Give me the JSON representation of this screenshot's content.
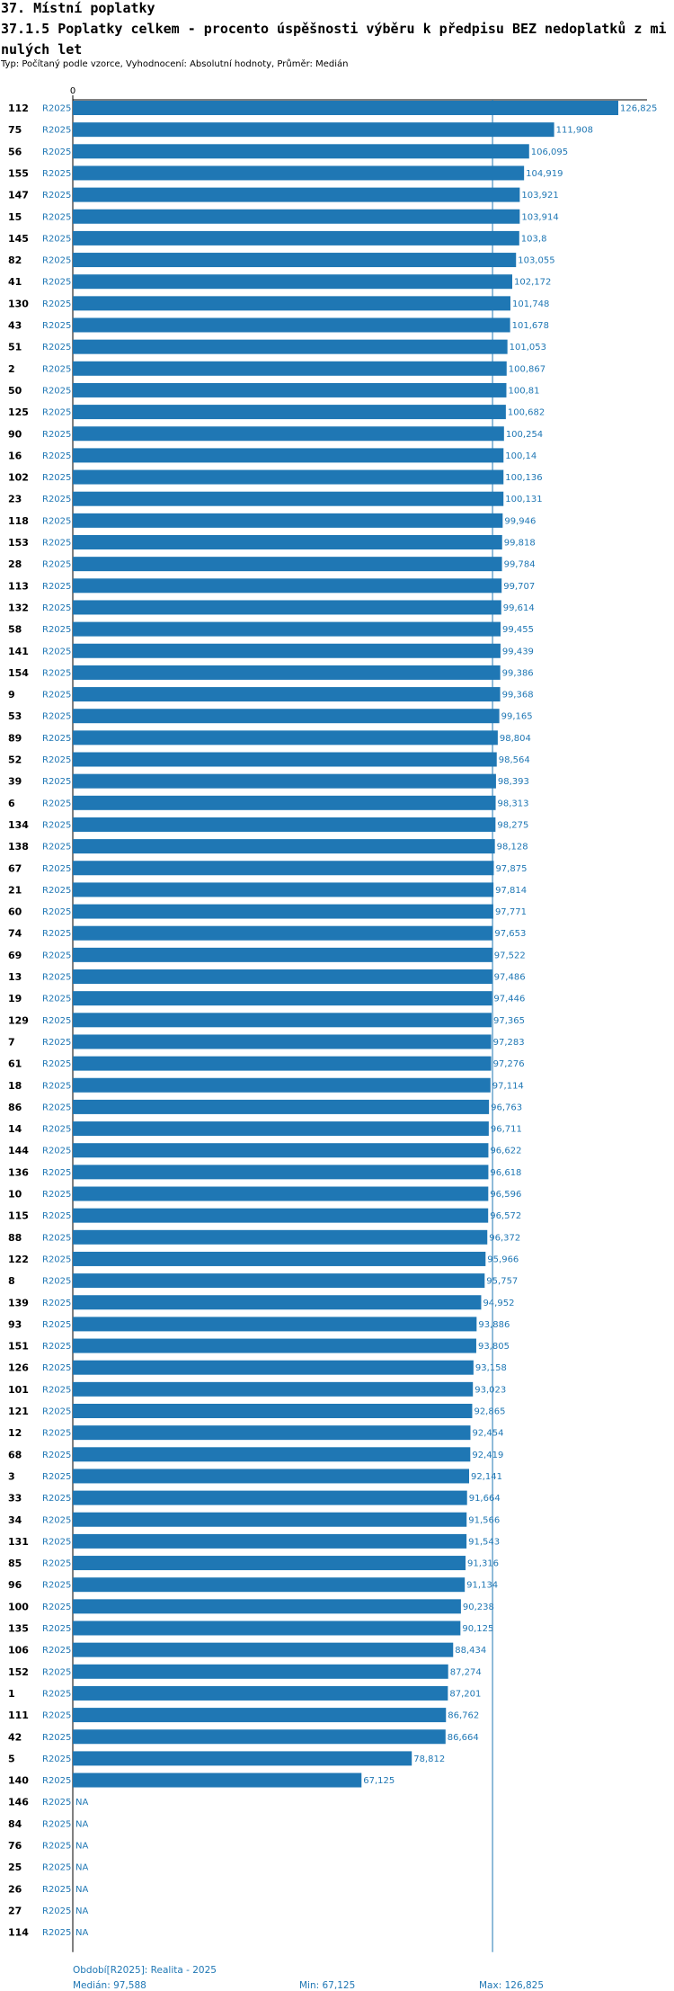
{
  "section_title": "37. Místní poplatky",
  "chart_title": "37.1.5 Poplatky celkem - procento úspěšnosti výběru k předpisu BEZ nedoplatků z minulých let",
  "subtitle": "Typ: Počítaný podle vzorce, Vyhodnocení: Absolutní hodnoty, Průměr: Medián",
  "colors": {
    "bar": "#1f77b4",
    "text_blue": "#1f77b4",
    "median_line": "#1f77b4",
    "axis": "#000000"
  },
  "footer": {
    "period": "Období[R2025]: Realita - 2025",
    "median": "Medián: 97,588",
    "min": "Min: 67,125",
    "max": "Max: 126,825"
  },
  "chart_data": {
    "type": "bar",
    "orientation": "horizontal",
    "x_tick_label": "0",
    "xlim": [
      0,
      126.825
    ],
    "median": 97.588,
    "series_label": "R2025",
    "categories": [
      "112",
      "75",
      "56",
      "155",
      "147",
      "15",
      "145",
      "82",
      "41",
      "130",
      "43",
      "51",
      "2",
      "50",
      "125",
      "90",
      "16",
      "102",
      "23",
      "118",
      "153",
      "28",
      "113",
      "132",
      "58",
      "141",
      "154",
      "9",
      "53",
      "89",
      "52",
      "39",
      "6",
      "134",
      "138",
      "67",
      "21",
      "60",
      "74",
      "69",
      "13",
      "19",
      "129",
      "7",
      "61",
      "18",
      "86",
      "14",
      "144",
      "136",
      "10",
      "115",
      "88",
      "122",
      "8",
      "139",
      "93",
      "151",
      "126",
      "101",
      "121",
      "12",
      "68",
      "3",
      "33",
      "34",
      "131",
      "85",
      "96",
      "100",
      "135",
      "106",
      "152",
      "1",
      "111",
      "42",
      "5",
      "140",
      "146",
      "84",
      "76",
      "25",
      "26",
      "27",
      "114"
    ],
    "values": [
      126.825,
      111.908,
      106.095,
      104.919,
      103.921,
      103.914,
      103.8,
      103.055,
      102.172,
      101.748,
      101.678,
      101.053,
      100.867,
      100.81,
      100.682,
      100.254,
      100.14,
      100.136,
      100.131,
      99.946,
      99.818,
      99.784,
      99.707,
      99.614,
      99.455,
      99.439,
      99.386,
      99.368,
      99.165,
      98.804,
      98.564,
      98.393,
      98.313,
      98.275,
      98.128,
      97.875,
      97.814,
      97.771,
      97.653,
      97.522,
      97.486,
      97.446,
      97.365,
      97.283,
      97.276,
      97.114,
      96.763,
      96.711,
      96.622,
      96.618,
      96.596,
      96.572,
      96.372,
      95.966,
      95.757,
      94.952,
      93.886,
      93.805,
      93.158,
      93.023,
      92.865,
      92.454,
      92.419,
      92.141,
      91.664,
      91.566,
      91.543,
      91.316,
      91.134,
      90.238,
      90.125,
      88.434,
      87.274,
      87.201,
      86.762,
      86.664,
      78.812,
      67.125,
      null,
      null,
      null,
      null,
      null,
      null,
      null
    ],
    "value_labels": [
      "126,825",
      "111,908",
      "106,095",
      "104,919",
      "103,921",
      "103,914",
      "103,8",
      "103,055",
      "102,172",
      "101,748",
      "101,678",
      "101,053",
      "100,867",
      "100,81",
      "100,682",
      "100,254",
      "100,14",
      "100,136",
      "100,131",
      "99,946",
      "99,818",
      "99,784",
      "99,707",
      "99,614",
      "99,455",
      "99,439",
      "99,386",
      "99,368",
      "99,165",
      "98,804",
      "98,564",
      "98,393",
      "98,313",
      "98,275",
      "98,128",
      "97,875",
      "97,814",
      "97,771",
      "97,653",
      "97,522",
      "97,486",
      "97,446",
      "97,365",
      "97,283",
      "97,276",
      "97,114",
      "96,763",
      "96,711",
      "96,622",
      "96,618",
      "96,596",
      "96,572",
      "96,372",
      "95,966",
      "95,757",
      "94,952",
      "93,886",
      "93,805",
      "93,158",
      "93,023",
      "92,865",
      "92,454",
      "92,419",
      "92,141",
      "91,664",
      "91,566",
      "91,543",
      "91,316",
      "91,134",
      "90,238",
      "90,125",
      "88,434",
      "87,274",
      "87,201",
      "86,762",
      "86,664",
      "78,812",
      "67,125",
      "NA",
      "NA",
      "NA",
      "NA",
      "NA",
      "NA",
      "NA"
    ]
  }
}
